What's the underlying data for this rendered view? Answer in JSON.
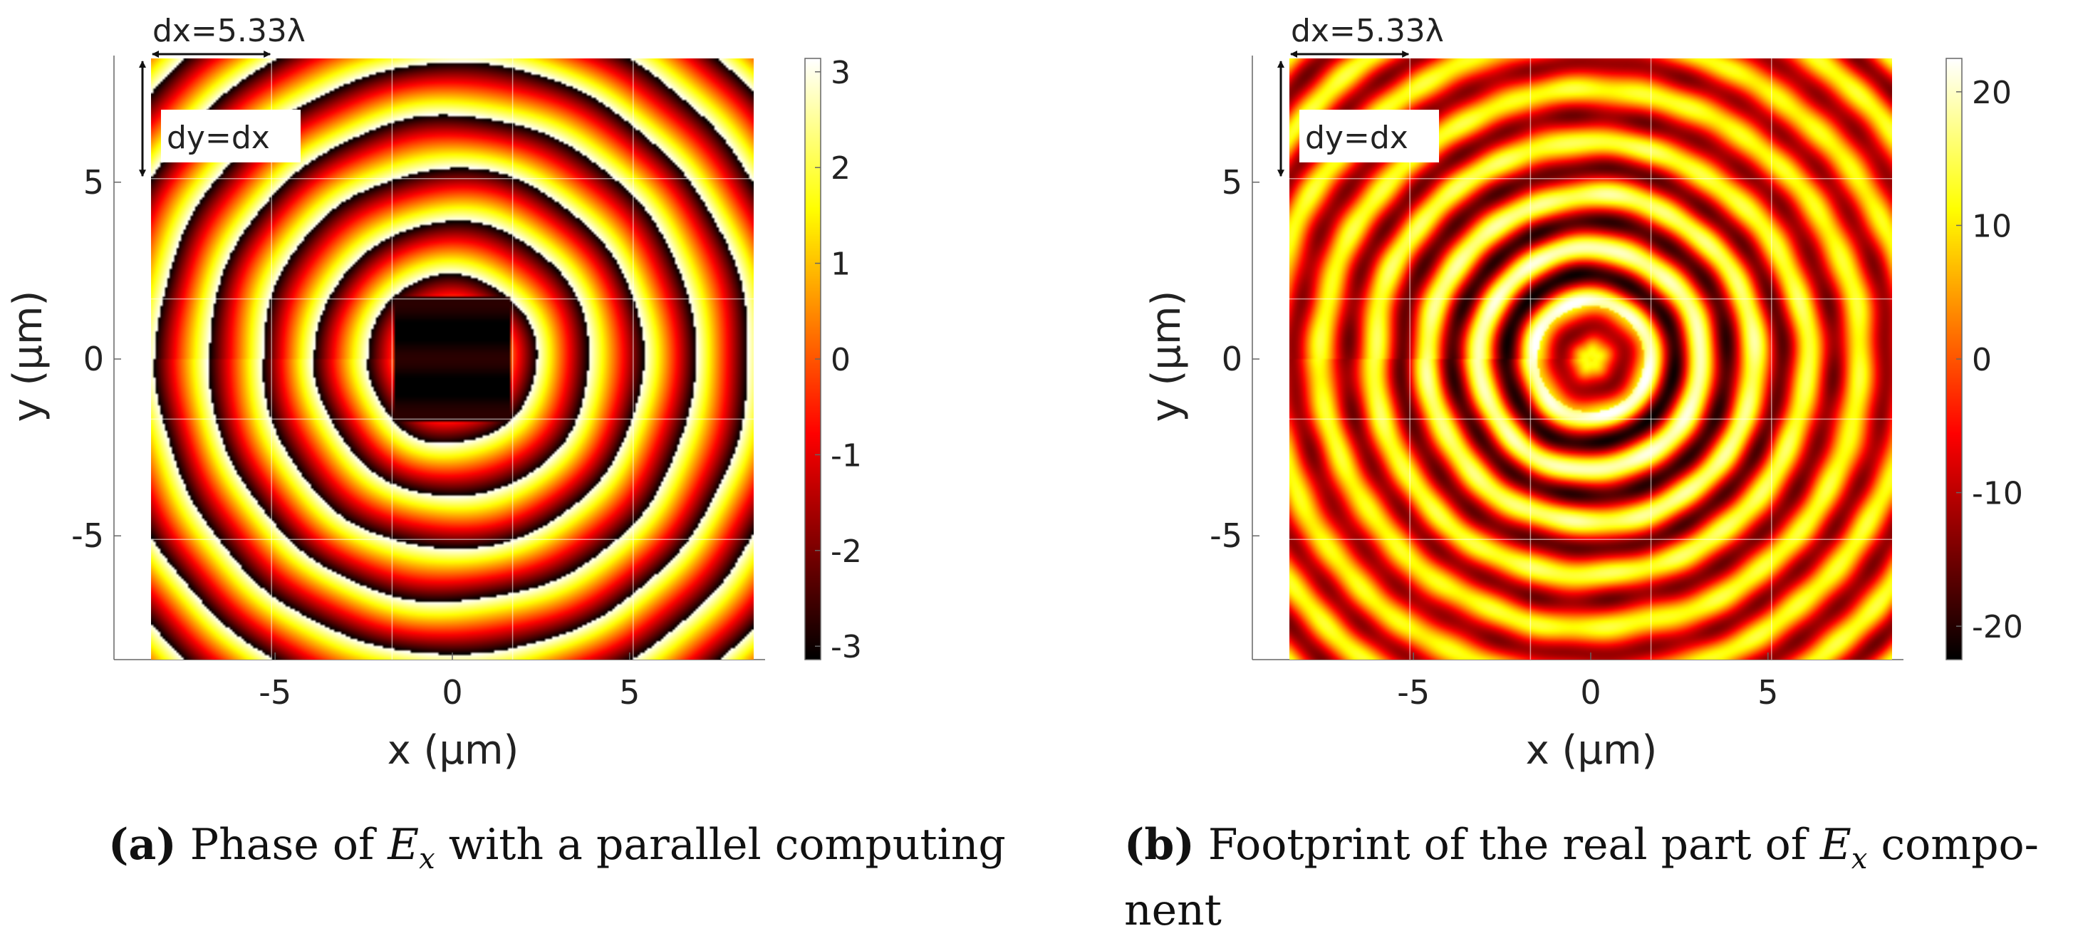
{
  "chart_data": [
    {
      "type": "heatmap",
      "title": "",
      "xlabel": "x (μm)",
      "ylabel": "y (μm)",
      "xlim": [
        -8.5,
        8.5
      ],
      "ylim": [
        -8.5,
        8.5
      ],
      "xticks": [
        -5,
        0,
        5
      ],
      "yticks": [
        5,
        0,
        -5
      ],
      "xtick_labels": [
        "-5",
        "0",
        "5"
      ],
      "ytick_labels": [
        "5",
        "0",
        "-5"
      ],
      "colorbar": {
        "min": -3.14,
        "max": 3.14,
        "ticks": [
          3,
          2,
          1,
          0,
          -1,
          -2,
          -3
        ],
        "tick_labels": [
          "3",
          "2",
          "1",
          "0",
          "-1",
          "-2",
          "-3"
        ],
        "colormap": "hot"
      },
      "field": "phase",
      "ring_period_um": 1.5,
      "subdomain_grid": [
        5,
        5
      ],
      "annotations": {
        "dx": "dx=5.33λ",
        "dy": "dy=dx"
      },
      "caption": {
        "tag": "(a)",
        "text_before": "Phase of ",
        "var": "E",
        "sub": "x",
        "text_after": " with a parallel computing",
        "line2": ""
      }
    },
    {
      "type": "heatmap",
      "title": "",
      "xlabel": "x (μm)",
      "ylabel": "y (μm)",
      "xlim": [
        -8.5,
        8.5
      ],
      "ylim": [
        -8.5,
        8.5
      ],
      "xticks": [
        -5,
        0,
        5
      ],
      "yticks": [
        5,
        0,
        -5
      ],
      "xtick_labels": [
        "-5",
        "0",
        "5"
      ],
      "ytick_labels": [
        "5",
        "0",
        "-5"
      ],
      "colorbar": {
        "min": -22.5,
        "max": 22.5,
        "ticks": [
          20,
          10,
          0,
          -10,
          -20
        ],
        "tick_labels": [
          "20",
          "10",
          "0",
          "-10",
          "-20"
        ],
        "colormap": "hot"
      },
      "field": "real",
      "ring_period_um": 1.5,
      "subdomain_grid": [
        5,
        5
      ],
      "annotations": {
        "dx": "dx=5.33λ",
        "dy": "dy=dx"
      },
      "caption": {
        "tag": "(b)",
        "text_before": "Footprint of the real part of ",
        "var": "E",
        "sub": "x",
        "text_after": " compo-",
        "line2": "nent"
      }
    }
  ]
}
